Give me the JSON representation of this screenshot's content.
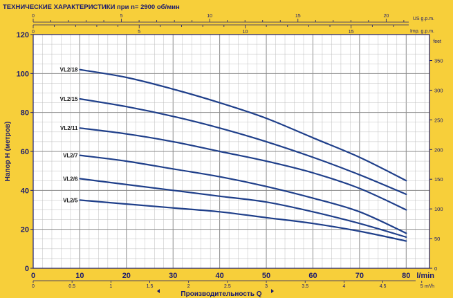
{
  "chart_data": {
    "type": "line",
    "title": "ТЕХНИЧЕСКИЕ ХАРАКТЕРИСТИКИ при n= 2900 об/мин",
    "xlabel": "Производительность Q",
    "ylabel": "Напор H (метров)",
    "x_unit": "l/min",
    "y2_unit": "feet",
    "top_axis_us_unit": "US g.p.m.",
    "top_axis_imp_unit": "Imp. g.p.m.",
    "bottom_axis2_unit": "m³/h",
    "xlim": [
      0,
      85
    ],
    "ylim": [
      0,
      120
    ],
    "x_ticks": [
      0,
      10,
      20,
      30,
      40,
      50,
      60,
      70,
      80
    ],
    "y_ticks": [
      0,
      20,
      40,
      60,
      80,
      100,
      120
    ],
    "feet_ticks": [
      0,
      50,
      100,
      150,
      200,
      250,
      300,
      350
    ],
    "us_gpm_ticks": [
      0,
      5,
      10,
      15,
      20
    ],
    "imp_gpm_ticks": [
      0,
      5,
      10,
      15
    ],
    "m3h_ticks": [
      "0",
      "0.5",
      "1",
      "1.5",
      "2",
      "2.5",
      "3",
      "3.5",
      "4",
      "4.5",
      "5"
    ],
    "grid": true,
    "series": [
      {
        "name": "VL2/18",
        "x": [
          10,
          20,
          30,
          40,
          50,
          60,
          70,
          80
        ],
        "y": [
          102,
          98,
          92,
          85,
          77,
          67,
          57,
          45
        ]
      },
      {
        "name": "VL2/15",
        "x": [
          10,
          20,
          30,
          40,
          50,
          60,
          70,
          80
        ],
        "y": [
          87,
          83,
          78,
          72,
          65,
          57,
          48,
          38
        ]
      },
      {
        "name": "VL2/11",
        "x": [
          10,
          20,
          30,
          40,
          50,
          60,
          70,
          80
        ],
        "y": [
          72,
          69,
          65,
          60,
          55,
          49,
          41,
          30
        ]
      },
      {
        "name": "VL2/7",
        "x": [
          10,
          20,
          30,
          40,
          50,
          60,
          70,
          80
        ],
        "y": [
          58,
          55,
          51,
          47,
          42,
          36,
          29,
          18
        ]
      },
      {
        "name": "VL2/6",
        "x": [
          10,
          20,
          30,
          40,
          50,
          60,
          70,
          80
        ],
        "y": [
          46,
          43,
          40,
          37,
          34,
          29,
          23,
          16
        ]
      },
      {
        "name": "VL2/5",
        "x": [
          10,
          20,
          30,
          40,
          50,
          60,
          70,
          80
        ],
        "y": [
          35,
          33,
          31,
          29,
          26,
          23,
          19,
          14
        ]
      }
    ]
  },
  "colors": {
    "background": "#f7cf3a",
    "plot_background": "#ffffff",
    "curve": "#1f3f8a",
    "axis_text": "#1a1a6e",
    "grid": "#bdbdbd"
  }
}
